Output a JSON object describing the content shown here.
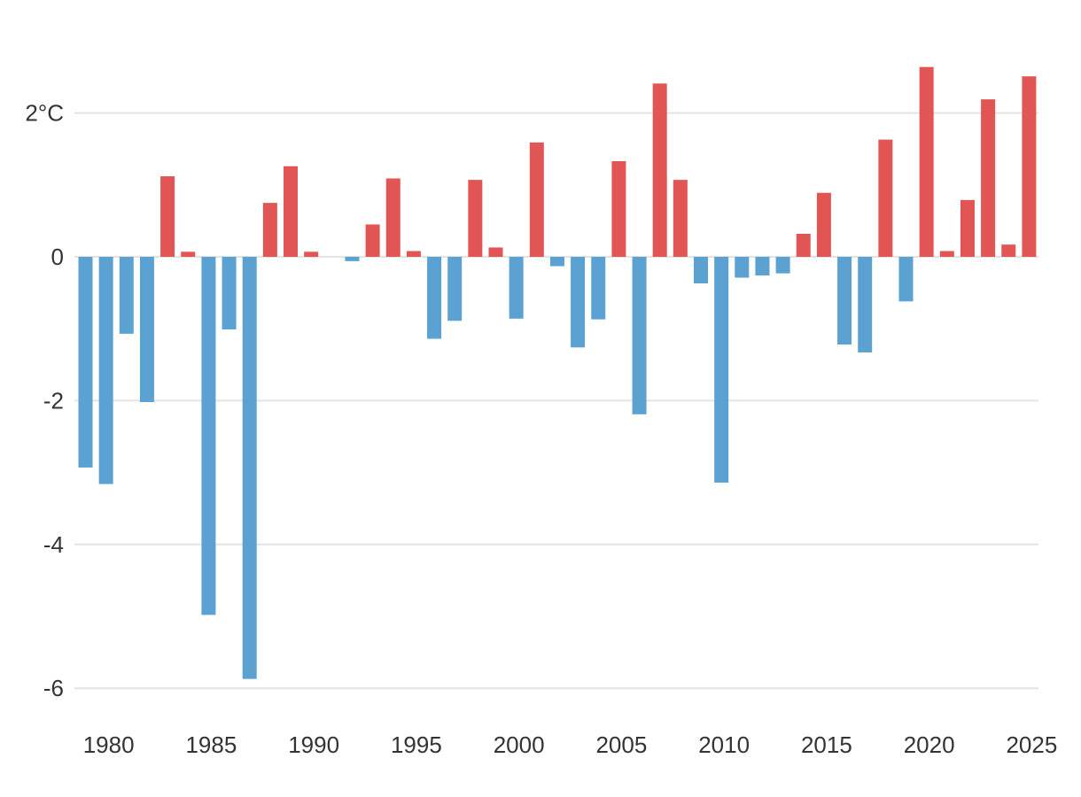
{
  "chart_data": {
    "type": "bar",
    "title": "",
    "xlabel": "",
    "ylabel": "",
    "ylim": [
      -6.4,
      2.9
    ],
    "y_ticks": [
      {
        "value": 2,
        "label": "2°C"
      },
      {
        "value": 0,
        "label": "0"
      },
      {
        "value": -2,
        "label": "-2"
      },
      {
        "value": -4,
        "label": "-4"
      },
      {
        "value": -6,
        "label": "-6"
      }
    ],
    "x_ticks": [
      {
        "value": 1980,
        "label": "1980"
      },
      {
        "value": 1985,
        "label": "1985"
      },
      {
        "value": 1990,
        "label": "1990"
      },
      {
        "value": 1995,
        "label": "1995"
      },
      {
        "value": 2000,
        "label": "2000"
      },
      {
        "value": 2005,
        "label": "2005"
      },
      {
        "value": 2010,
        "label": "2010"
      },
      {
        "value": 2015,
        "label": "2015"
      },
      {
        "value": 2020,
        "label": "2020"
      },
      {
        "value": 2025,
        "label": "2025"
      }
    ],
    "categories": [
      1979,
      1980,
      1981,
      1982,
      1983,
      1984,
      1985,
      1986,
      1987,
      1988,
      1989,
      1990,
      1991,
      1992,
      1993,
      1994,
      1995,
      1996,
      1997,
      1998,
      1999,
      2000,
      2001,
      2002,
      2003,
      2004,
      2005,
      2006,
      2007,
      2008,
      2009,
      2010,
      2011,
      2012,
      2013,
      2014,
      2015,
      2016,
      2017,
      2018,
      2019,
      2020,
      2021,
      2022,
      2023,
      2024,
      2025
    ],
    "values": [
      -2.93,
      -3.16,
      -1.07,
      -2.02,
      1.12,
      0.07,
      -4.98,
      -1.01,
      -5.87,
      0.75,
      1.26,
      0.07,
      0.0,
      -0.06,
      0.45,
      1.09,
      0.08,
      -1.14,
      -0.89,
      1.07,
      0.13,
      -0.86,
      1.59,
      -0.13,
      -1.26,
      -0.87,
      1.33,
      -2.19,
      2.41,
      1.07,
      -0.37,
      -3.14,
      -0.29,
      -0.26,
      -0.23,
      0.32,
      0.89,
      -1.22,
      -1.33,
      1.63,
      -0.62,
      2.64,
      0.08,
      0.79,
      2.19,
      0.17,
      2.51
    ],
    "colors": {
      "positive": "#e15554",
      "negative": "#5ba1d2"
    }
  }
}
